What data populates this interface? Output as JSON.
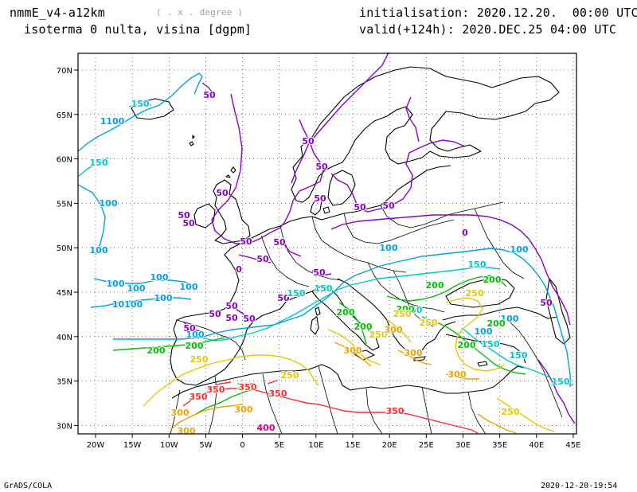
{
  "header": {
    "model": "nmmE_v4-a12km",
    "units_hint": "( . x . degree )",
    "field": "isoterma 0 nulta, visina [dgpm]",
    "init": "initialisation: 2020.12.20.  00:00 UTC",
    "valid": "valid(+124h): 2020.DEC.25 04:00 UTC"
  },
  "footer": {
    "left": "GrADS/COLA",
    "right": "2020-12-20-19:54"
  },
  "map": {
    "lon_ticks": [
      "20W",
      "15W",
      "10W",
      "5W",
      "0",
      "5E",
      "10E",
      "15E",
      "20E",
      "25E",
      "30E",
      "35E",
      "40E",
      "45E"
    ],
    "lat_ticks": [
      "70N",
      "65N",
      "60N",
      "55N",
      "50N",
      "45N",
      "40N",
      "35N",
      "30N"
    ],
    "grid": "dotted",
    "colors": {
      "c50": "#8a00c8",
      "c100": "#00a0e8",
      "c150": "#00c8c8",
      "c200": "#00c000",
      "c250": "#e8c800",
      "c300": "#f0a000",
      "c350": "#ff2a2a",
      "c400": "#e00080"
    },
    "contour_labels": [
      {
        "text": "50",
        "c": "c50"
      },
      {
        "text": "50",
        "c": "c50"
      },
      {
        "text": "50",
        "c": "c50"
      },
      {
        "text": "50",
        "c": "c50"
      },
      {
        "text": "50",
        "c": "c50"
      },
      {
        "text": "50",
        "c": "c50"
      },
      {
        "text": "50",
        "c": "c50"
      },
      {
        "text": "50",
        "c": "c50"
      },
      {
        "text": "50",
        "c": "c50"
      },
      {
        "text": "50",
        "c": "c50"
      },
      {
        "text": "50",
        "c": "c50"
      },
      {
        "text": "50",
        "c": "c50"
      },
      {
        "text": "50",
        "c": "c50"
      },
      {
        "text": "50",
        "c": "c50"
      },
      {
        "text": "50",
        "c": "c50"
      },
      {
        "text": "50",
        "c": "c50"
      },
      {
        "text": "50",
        "c": "c50"
      },
      {
        "text": "50",
        "c": "c50"
      },
      {
        "text": "50",
        "c": "c50"
      },
      {
        "text": "0",
        "c": "c50"
      },
      {
        "text": "0",
        "c": "c50"
      },
      {
        "text": "50",
        "c": "c50"
      },
      {
        "text": "150",
        "c": "c150"
      },
      {
        "text": "1100",
        "c": "c100"
      },
      {
        "text": "150",
        "c": "c150"
      },
      {
        "text": "100",
        "c": "c100"
      },
      {
        "text": "100",
        "c": "c100"
      },
      {
        "text": "100",
        "c": "c100"
      },
      {
        "text": "100",
        "c": "c100"
      },
      {
        "text": "100",
        "c": "c100"
      },
      {
        "text": "100",
        "c": "c100"
      },
      {
        "text": "100",
        "c": "c100"
      },
      {
        "text": "10100",
        "c": "c100"
      },
      {
        "text": "100",
        "c": "c100"
      },
      {
        "text": "100",
        "c": "c100"
      },
      {
        "text": "150",
        "c": "c150"
      },
      {
        "text": "150",
        "c": "c150"
      },
      {
        "text": "150",
        "c": "c150"
      },
      {
        "text": "100",
        "c": "c100"
      },
      {
        "text": "100",
        "c": "c100"
      },
      {
        "text": "100",
        "c": "c100"
      },
      {
        "text": "150",
        "c": "c150"
      },
      {
        "text": "150",
        "c": "c150"
      },
      {
        "text": "150",
        "c": "c150"
      },
      {
        "text": "150",
        "c": "c150"
      },
      {
        "text": "200",
        "c": "c200"
      },
      {
        "text": "200",
        "c": "c200"
      },
      {
        "text": "200",
        "c": "c200"
      },
      {
        "text": "200",
        "c": "c200"
      },
      {
        "text": "200",
        "c": "c200"
      },
      {
        "text": "200",
        "c": "c200"
      },
      {
        "text": "200",
        "c": "c200"
      },
      {
        "text": "200",
        "c": "c200"
      },
      {
        "text": "200",
        "c": "c200"
      },
      {
        "text": "200",
        "c": "c200"
      },
      {
        "text": "250",
        "c": "c250"
      },
      {
        "text": "250",
        "c": "c250"
      },
      {
        "text": "250",
        "c": "c250"
      },
      {
        "text": "250",
        "c": "c250"
      },
      {
        "text": "250",
        "c": "c250"
      },
      {
        "text": "250",
        "c": "c250"
      },
      {
        "text": "250",
        "c": "c250"
      },
      {
        "text": "300",
        "c": "c300"
      },
      {
        "text": "300",
        "c": "c300"
      },
      {
        "text": "300",
        "c": "c300"
      },
      {
        "text": "300",
        "c": "c300"
      },
      {
        "text": "300",
        "c": "c300"
      },
      {
        "text": "300",
        "c": "c300"
      },
      {
        "text": "300",
        "c": "c300"
      },
      {
        "text": "350",
        "c": "c350"
      },
      {
        "text": "350",
        "c": "c350"
      },
      {
        "text": "350",
        "c": "c350"
      },
      {
        "text": "350",
        "c": "c350"
      },
      {
        "text": "350",
        "c": "c350"
      },
      {
        "text": "400",
        "c": "c400"
      }
    ]
  }
}
